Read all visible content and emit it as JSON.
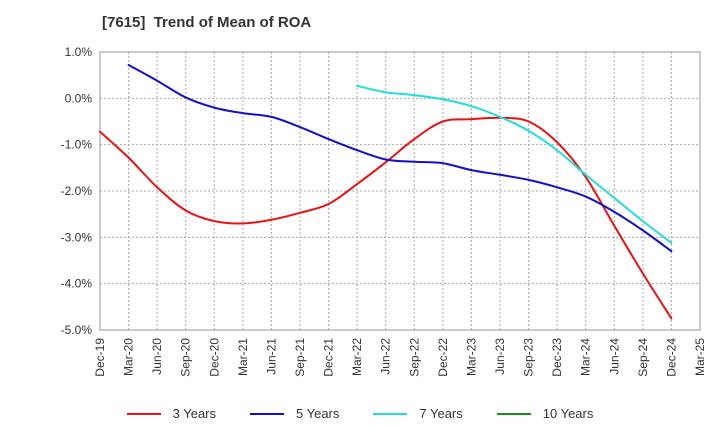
{
  "chart_data": {
    "type": "line",
    "title": "[7615]  Trend of Mean of ROA",
    "xlabel": "",
    "ylabel": "",
    "categories": [
      "Dec-19",
      "Mar-20",
      "Jun-20",
      "Sep-20",
      "Dec-20",
      "Mar-21",
      "Jun-21",
      "Sep-21",
      "Dec-21",
      "Mar-22",
      "Jun-22",
      "Sep-22",
      "Dec-22",
      "Mar-23",
      "Jun-23",
      "Sep-23",
      "Dec-23",
      "Mar-24",
      "Jun-24",
      "Sep-24",
      "Dec-24",
      "Mar-25"
    ],
    "ylim": [
      -5.0,
      1.0
    ],
    "yticks": [
      1.0,
      0.0,
      -1.0,
      -2.0,
      -3.0,
      -4.0,
      -5.0
    ],
    "ytick_labels": [
      "1.0%",
      "0.0%",
      "-1.0%",
      "-2.0%",
      "-3.0%",
      "-4.0%",
      "-5.0%"
    ],
    "grid": true,
    "legend_position": "bottom",
    "series": [
      {
        "name": "3 Years",
        "color": "#ee1111",
        "values": [
          -0.72,
          -1.28,
          -1.92,
          -2.42,
          -2.65,
          -2.7,
          -2.62,
          -2.47,
          -2.28,
          -1.85,
          -1.38,
          -0.88,
          -0.5,
          -0.45,
          -0.42,
          -0.5,
          -0.95,
          -1.7,
          -2.75,
          -3.78,
          -4.75,
          null
        ]
      },
      {
        "name": "5 Years",
        "color": "#1111cc",
        "values": [
          null,
          0.72,
          0.38,
          0.02,
          -0.2,
          -0.32,
          -0.4,
          -0.62,
          -0.88,
          -1.12,
          -1.32,
          -1.37,
          -1.4,
          -1.55,
          -1.65,
          -1.76,
          -1.92,
          -2.12,
          -2.45,
          -2.85,
          -3.3,
          null
        ]
      },
      {
        "name": "7 Years",
        "color": "#22dddd",
        "values": [
          null,
          null,
          null,
          null,
          null,
          null,
          null,
          null,
          null,
          0.27,
          0.13,
          0.07,
          -0.02,
          -0.17,
          -0.4,
          -0.7,
          -1.12,
          -1.65,
          -2.15,
          -2.65,
          -3.12,
          null
        ]
      },
      {
        "name": "10 Years",
        "color": "#228b22",
        "values": [
          null,
          null,
          null,
          null,
          null,
          null,
          null,
          null,
          null,
          null,
          null,
          null,
          null,
          null,
          null,
          null,
          null,
          null,
          null,
          null,
          null,
          null
        ]
      }
    ]
  }
}
